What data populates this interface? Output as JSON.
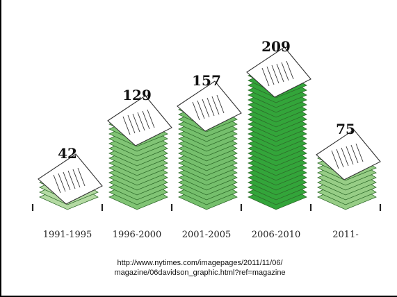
{
  "chart_data": {
    "type": "bar",
    "categories": [
      "1991-1995",
      "1996-2000",
      "2001-2005",
      "2006-2010",
      "2011-"
    ],
    "values": [
      42,
      129,
      157,
      209,
      75
    ],
    "title": "",
    "xlabel": "",
    "ylabel": "",
    "ylim": [
      0,
      209
    ],
    "grid": false,
    "legend": "none",
    "colors": {
      "page_top": "#ffffff",
      "paper_line": "#333333",
      "stack_light": "#e4f0d6",
      "stack_mid": "#9ccf8a",
      "stack_dark": "#33a53a",
      "stack_edge": "#2e6b2a"
    }
  },
  "source": {
    "line1": "http://www.nytimes.com/imagepages/2011/11/06/",
    "line2": "magazine/06davidson_graphic.html?ref=magazine"
  }
}
